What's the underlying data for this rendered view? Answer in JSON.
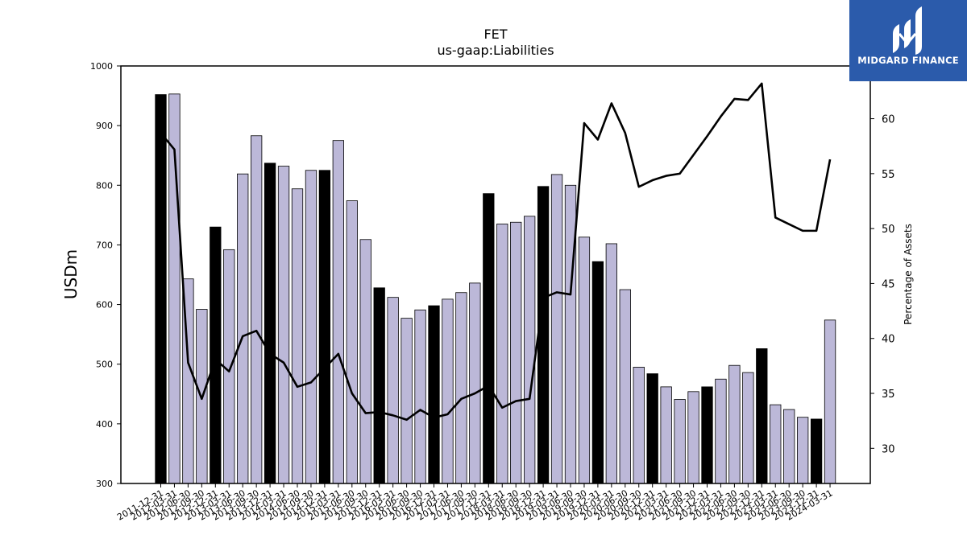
{
  "chart_data": {
    "type": "bar",
    "title": "FET",
    "subtitle": "us-gaap:Liabilities",
    "ylabel": "USDm",
    "y2label": "Percentage of Assets",
    "ylim": [
      300,
      1000
    ],
    "y2lim": [
      26.8,
      64.8
    ],
    "yticks": [
      300,
      400,
      500,
      600,
      700,
      800,
      900,
      1000
    ],
    "y2ticks": [
      30,
      35,
      40,
      45,
      50,
      55,
      60
    ],
    "categories": [
      "2011-12-31",
      "2012-03-31",
      "2012-06-30",
      "2012-09-30",
      "2012-12-31",
      "2013-03-31",
      "2013-06-30",
      "2013-09-30",
      "2013-12-31",
      "2014-03-31",
      "2014-06-30",
      "2014-09-30",
      "2014-12-31",
      "2015-03-31",
      "2015-06-30",
      "2015-09-30",
      "2015-12-31",
      "2016-03-31",
      "2016-06-30",
      "2016-09-30",
      "2016-12-31",
      "2017-03-31",
      "2017-06-30",
      "2017-09-30",
      "2017-12-31",
      "2018-03-31",
      "2018-06-30",
      "2018-09-30",
      "2018-12-31",
      "2019-03-31",
      "2019-06-30",
      "2019-09-30",
      "2019-12-31",
      "2020-03-31",
      "2020-06-30",
      "2020-09-30",
      "2020-12-31",
      "2021-03-31",
      "2021-06-30",
      "2021-09-30",
      "2021-12-31",
      "2022-03-31",
      "2022-06-30",
      "2022-09-30",
      "2022-12-31",
      "2023-03-31",
      "2023-06-30",
      "2023-09-30",
      "2023-12-31",
      "2024-03-31"
    ],
    "xtick_labels": [
      "2011-12-31",
      "2012-03-31",
      "2012-06-30",
      "2012-09-30",
      "2012-12-31",
      "2013-03-31",
      "2013-06-30",
      "2013-09-30",
      "2013-12-31",
      "2014-03-31",
      "2014-06-30",
      "2014-09-30",
      "2014-12-31",
      "2015-03-31",
      "2015-06-30",
      "2015-09-30",
      "2015-12-31",
      "2016-03-31",
      "2016-06-30",
      "2016-09-30",
      "2016-12-31",
      "2017-03-31",
      "2017-06-30",
      "2017-09-30",
      "2017-12-31",
      "2018-03-31",
      "2018-06-30",
      "2018-09-30",
      "2018-12-31",
      "2019-03-31",
      "2019-06-30",
      "2019-09-30",
      "2019-12-31",
      "2020-03-31",
      "2020-06-30",
      "2020-09-30",
      "2020-12-31",
      "2021-03-31",
      "2021-06-30",
      "2021-09-30",
      "2021-12-31",
      "2022-03-31",
      "2022-06-30",
      "2022-09-30",
      "2022-12-31",
      "2023-03-31",
      "2023-06-30",
      "2023-09-30",
      "2023-12-31",
      "2024-03-31"
    ],
    "series": [
      {
        "type": "bar",
        "values": [
          952,
          953,
          643,
          592,
          730,
          692,
          819,
          883,
          837,
          832,
          794,
          825,
          825,
          875,
          774,
          709,
          628,
          612,
          577,
          591,
          598,
          609,
          620,
          636,
          786,
          735,
          738,
          748,
          798,
          818,
          800,
          713,
          672,
          702,
          625,
          495,
          484,
          462,
          441,
          454,
          462,
          475,
          498,
          486,
          526,
          432,
          424,
          411,
          408,
          574
        ]
      },
      {
        "type": "line",
        "axis": "right",
        "values": [
          58.7,
          57.2,
          37.8,
          34.5,
          38.1,
          37.0,
          40.2,
          40.7,
          38.6,
          37.8,
          35.6,
          36.0,
          37.3,
          38.6,
          35.0,
          33.2,
          33.3,
          33.0,
          32.6,
          33.5,
          32.8,
          33.1,
          34.5,
          35.0,
          35.7,
          33.7,
          34.3,
          34.5,
          43.7,
          44.2,
          44.0,
          59.6,
          58.1,
          61.4,
          58.7,
          53.8,
          54.4,
          54.8,
          55.0,
          56.7,
          58.4,
          60.2,
          61.8,
          61.7,
          63.2,
          51.0,
          50.4,
          49.8,
          49.8,
          56.3
        ]
      }
    ],
    "bar_colors": {
      "annual": "#000000",
      "quarterly": "#bcb8d8"
    },
    "highlighted_indices": [
      0,
      4,
      8,
      12,
      16,
      20,
      24,
      28,
      32,
      36,
      40,
      44,
      48
    ],
    "line_color": "#000000",
    "grid": false,
    "legend": "none"
  },
  "logo": {
    "text": "MIDGARD FINANCE",
    "background": "#2b5bab"
  }
}
